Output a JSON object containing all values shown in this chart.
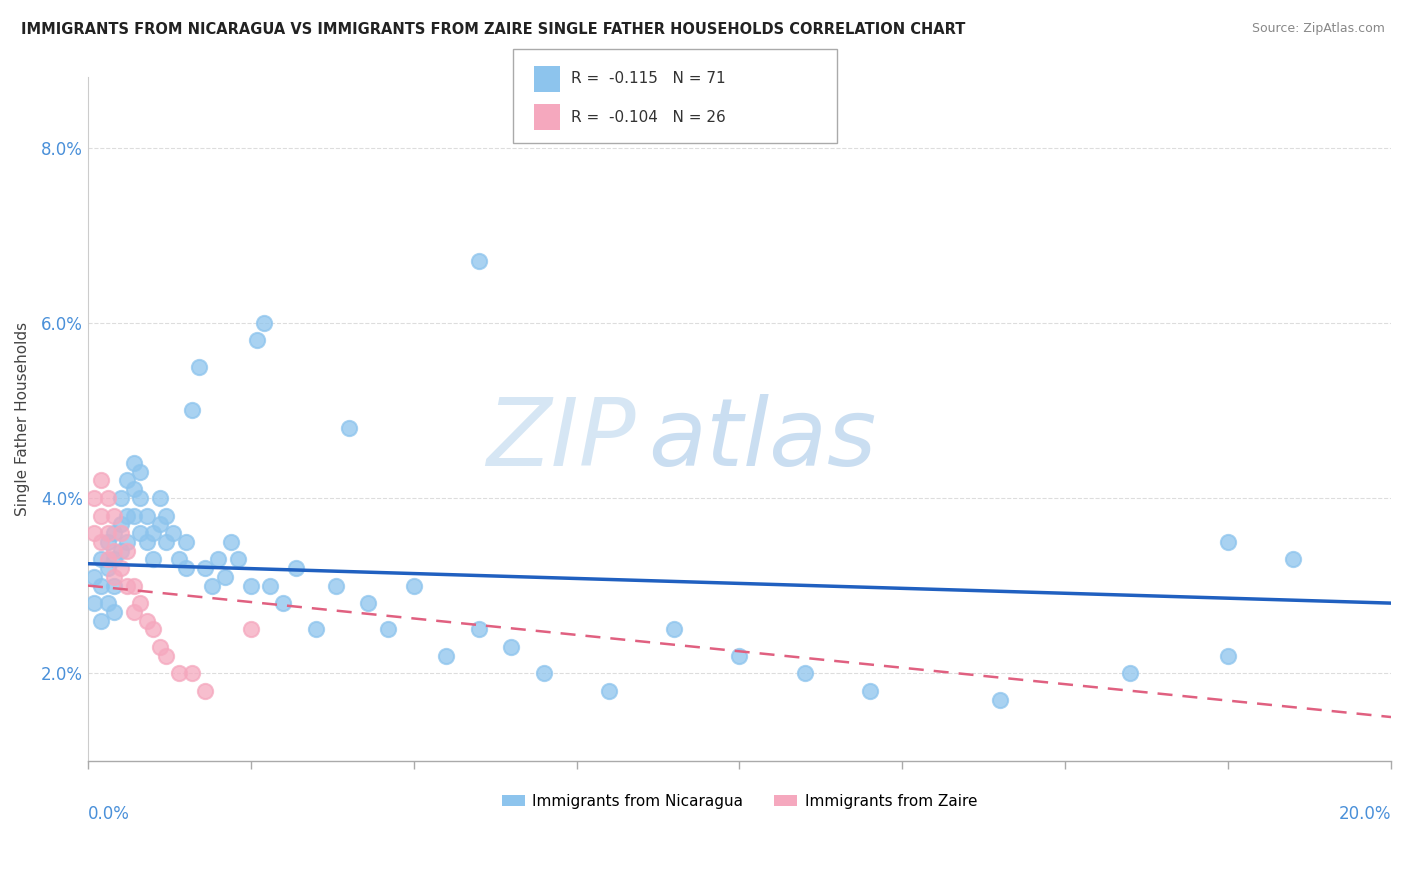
{
  "title": "IMMIGRANTS FROM NICARAGUA VS IMMIGRANTS FROM ZAIRE SINGLE FATHER HOUSEHOLDS CORRELATION CHART",
  "source": "Source: ZipAtlas.com",
  "ylabel": "Single Father Households",
  "xlim": [
    0.0,
    0.2
  ],
  "ylim": [
    0.01,
    0.088
  ],
  "yticks": [
    0.02,
    0.04,
    0.06,
    0.08
  ],
  "ytick_labels": [
    "2.0%",
    "4.0%",
    "6.0%",
    "8.0%"
  ],
  "xticks": [
    0.0,
    0.025,
    0.05,
    0.075,
    0.1,
    0.125,
    0.15,
    0.175,
    0.2
  ],
  "legend_R1": "R =  -0.115",
  "legend_N1": "N = 71",
  "legend_R2": "R =  -0.104",
  "legend_N2": "N = 26",
  "legend_label1": "Immigrants from Nicaragua",
  "legend_label2": "Immigrants from Zaire",
  "color_nicaragua": "#8DC4ED",
  "color_zaire": "#F5A8BE",
  "color_line_nicaragua": "#2060C0",
  "color_line_zaire": "#E06080",
  "watermark_zip": "ZIP",
  "watermark_atlas": "atlas",
  "nic_line_x0": 0.0,
  "nic_line_y0": 0.0325,
  "nic_line_x1": 0.2,
  "nic_line_y1": 0.028,
  "zaire_line_x0": 0.0,
  "zaire_line_y0": 0.03,
  "zaire_line_x1": 0.2,
  "zaire_line_y1": 0.015,
  "nicaragua_x": [
    0.001,
    0.001,
    0.002,
    0.002,
    0.002,
    0.003,
    0.003,
    0.003,
    0.004,
    0.004,
    0.004,
    0.004,
    0.005,
    0.005,
    0.005,
    0.006,
    0.006,
    0.006,
    0.007,
    0.007,
    0.007,
    0.008,
    0.008,
    0.008,
    0.009,
    0.009,
    0.01,
    0.01,
    0.011,
    0.011,
    0.012,
    0.012,
    0.013,
    0.014,
    0.015,
    0.015,
    0.016,
    0.017,
    0.018,
    0.019,
    0.02,
    0.021,
    0.022,
    0.023,
    0.025,
    0.026,
    0.027,
    0.028,
    0.03,
    0.032,
    0.035,
    0.038,
    0.04,
    0.043,
    0.046,
    0.05,
    0.055,
    0.06,
    0.065,
    0.07,
    0.08,
    0.09,
    0.1,
    0.11,
    0.12,
    0.14,
    0.16,
    0.175,
    0.185,
    0.06,
    0.175
  ],
  "nicaragua_y": [
    0.031,
    0.028,
    0.033,
    0.03,
    0.026,
    0.035,
    0.032,
    0.028,
    0.036,
    0.033,
    0.03,
    0.027,
    0.04,
    0.037,
    0.034,
    0.042,
    0.038,
    0.035,
    0.044,
    0.041,
    0.038,
    0.043,
    0.04,
    0.036,
    0.038,
    0.035,
    0.036,
    0.033,
    0.04,
    0.037,
    0.038,
    0.035,
    0.036,
    0.033,
    0.035,
    0.032,
    0.05,
    0.055,
    0.032,
    0.03,
    0.033,
    0.031,
    0.035,
    0.033,
    0.03,
    0.058,
    0.06,
    0.03,
    0.028,
    0.032,
    0.025,
    0.03,
    0.048,
    0.028,
    0.025,
    0.03,
    0.022,
    0.025,
    0.023,
    0.02,
    0.018,
    0.025,
    0.022,
    0.02,
    0.018,
    0.017,
    0.02,
    0.022,
    0.033,
    0.067,
    0.035
  ],
  "zaire_x": [
    0.001,
    0.001,
    0.002,
    0.002,
    0.002,
    0.003,
    0.003,
    0.003,
    0.004,
    0.004,
    0.004,
    0.005,
    0.005,
    0.006,
    0.006,
    0.007,
    0.007,
    0.008,
    0.009,
    0.01,
    0.011,
    0.012,
    0.014,
    0.016,
    0.018,
    0.025
  ],
  "zaire_y": [
    0.04,
    0.036,
    0.042,
    0.038,
    0.035,
    0.04,
    0.036,
    0.033,
    0.038,
    0.034,
    0.031,
    0.036,
    0.032,
    0.034,
    0.03,
    0.03,
    0.027,
    0.028,
    0.026,
    0.025,
    0.023,
    0.022,
    0.02,
    0.02,
    0.018,
    0.025
  ]
}
